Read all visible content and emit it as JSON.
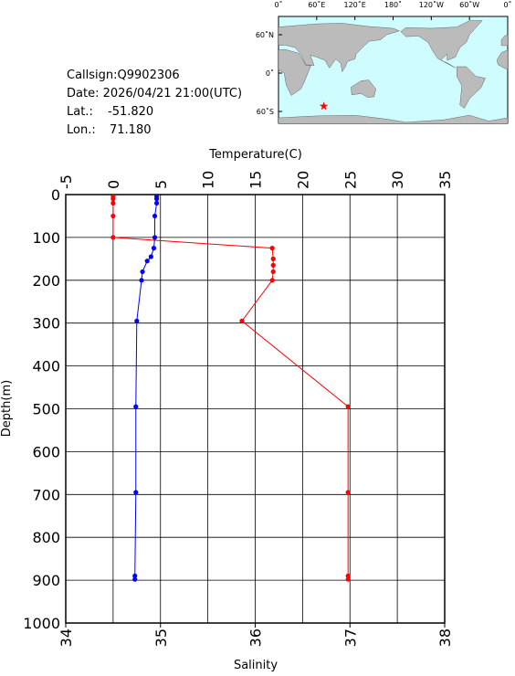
{
  "info": {
    "callsign": "Callsign:Q9902306",
    "date": "Date:  2026/04/21 21:00(UTC)",
    "lat_label": "Lat.:",
    "lat": {
      "value": -51.82,
      "label": "-51.820"
    },
    "lon_label": "Lon.:",
    "lon": {
      "value": 71.18,
      "label": "71.180"
    }
  },
  "map": {
    "lon_ticks": [
      {
        "value": 0,
        "label": "0˚"
      },
      {
        "value": 60,
        "label": "60˚E"
      },
      {
        "value": 120,
        "label": "120˚E"
      },
      {
        "value": 180,
        "label": "180˚"
      },
      {
        "value": 240,
        "label": "120˚W"
      },
      {
        "value": 300,
        "label": "60˚W"
      },
      {
        "value": 360,
        "label": "0˚"
      }
    ],
    "lat_ticks": [
      {
        "value": 60,
        "label": "60˚N"
      },
      {
        "value": 0,
        "label": "0˚"
      },
      {
        "value": -60,
        "label": "60˚S"
      }
    ]
  },
  "chart_data": {
    "type": "profile",
    "x2_label": "Temperature(C)",
    "x_label": "Salinity",
    "y_label": "Depth(m)",
    "ylim": [
      0,
      1000
    ],
    "yticks": [
      0,
      100,
      200,
      300,
      400,
      500,
      600,
      700,
      800,
      900,
      1000
    ],
    "x2lim": [
      -5,
      35
    ],
    "x2ticks": [
      -5,
      0,
      5,
      10,
      15,
      20,
      25,
      30,
      35
    ],
    "xlim": [
      34,
      38
    ],
    "xticks": [
      34,
      35,
      36,
      37,
      38
    ],
    "grid": true,
    "series": [
      {
        "axis": "x2",
        "color": "#ff0000",
        "depth": [
          5,
          10,
          20,
          50,
          100,
          125,
          150,
          165,
          180,
          200,
          295,
          495,
          695,
          890,
          898
        ],
        "values": [
          0,
          0,
          0,
          0,
          0,
          16.8,
          16.9,
          16.9,
          16.9,
          16.8,
          13.6,
          24.8,
          24.8,
          24.8,
          24.8
        ]
      },
      {
        "axis": "x",
        "color": "#0000ff",
        "depth": [
          5,
          10,
          20,
          50,
          100,
          125,
          145,
          155,
          180,
          200,
          295,
          495,
          695,
          890,
          898
        ],
        "values": [
          34.96,
          34.96,
          34.96,
          34.94,
          34.94,
          34.93,
          34.9,
          34.86,
          34.81,
          34.8,
          34.75,
          34.74,
          34.74,
          34.73,
          34.73
        ]
      }
    ]
  }
}
